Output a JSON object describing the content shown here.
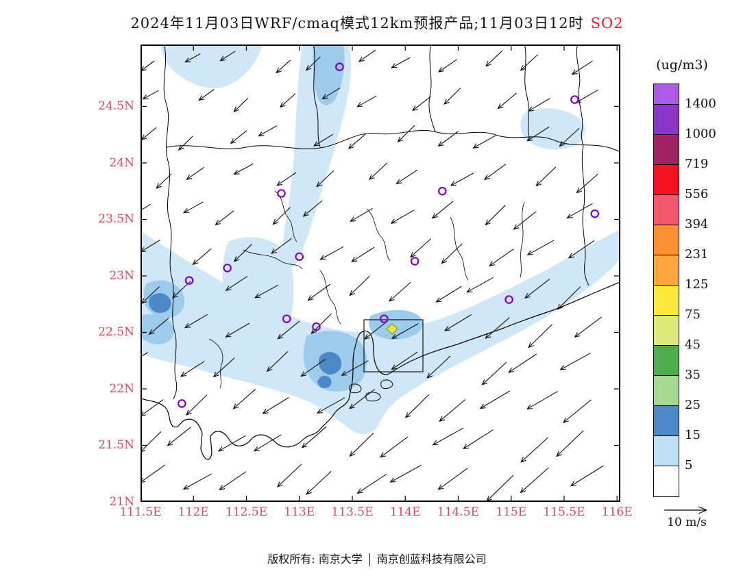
{
  "title": {
    "text": "2024年11月03日WRF/cmaq模式12km预报产品;11月03日12时",
    "species": "SO2"
  },
  "colorbar": {
    "unit": "(ug/m3)",
    "labels": [
      "1400",
      "1000",
      "719",
      "556",
      "394",
      "231",
      "125",
      "75",
      "45",
      "35",
      "25",
      "15",
      "5"
    ],
    "colors_top_to_bottom": [
      "#ab5be5",
      "#8936c9",
      "#a12364",
      "#f6111e",
      "#f4586e",
      "#fd8f33",
      "#ffa73e",
      "#ffe83e",
      "#dcea7a",
      "#4fae4c",
      "#a5d993",
      "#4d89c8",
      "#bfe0f5",
      "#ffffff"
    ]
  },
  "palette": {
    "pale": "#cfe7f7",
    "mid": "#9ccbec",
    "dark": "#4d89c8",
    "yellow": "#ffe23a",
    "yellowEdge": "#7ab648",
    "boundary": "#000000",
    "marker": "#7d00d4",
    "tick_label": "#e0475a"
  },
  "axes": {
    "extent": {
      "lon": [
        111.5,
        116.031
      ],
      "lat": [
        21.0,
        25.048
      ]
    },
    "lat_ticks": [
      {
        "v": 24.5,
        "label": "24.5N"
      },
      {
        "v": 24.0,
        "label": "24N"
      },
      {
        "v": 23.5,
        "label": "23.5N"
      },
      {
        "v": 23.0,
        "label": "23N"
      },
      {
        "v": 22.5,
        "label": "22.5N"
      },
      {
        "v": 22.0,
        "label": "22N"
      },
      {
        "v": 21.5,
        "label": "21.5N"
      },
      {
        "v": 21.0,
        "label": "21N"
      }
    ],
    "lon_ticks": [
      {
        "v": 111.5,
        "label": "111.5E"
      },
      {
        "v": 112.0,
        "label": "112E"
      },
      {
        "v": 112.5,
        "label": "112.5E"
      },
      {
        "v": 113.0,
        "label": "113E"
      },
      {
        "v": 113.5,
        "label": "113.5E"
      },
      {
        "v": 114.0,
        "label": "114E"
      },
      {
        "v": 114.5,
        "label": "114.5E"
      },
      {
        "v": 115.0,
        "label": "115E"
      },
      {
        "v": 115.5,
        "label": "115.5E"
      },
      {
        "v": 116.0,
        "label": "116E"
      }
    ]
  },
  "wind": {
    "ref_label": "10 m/s"
  },
  "footer": {
    "left": "版权所有: 南京大学",
    "right": "南京创蓝科技有限公司"
  },
  "stations": [
    {
      "lon": 113.38,
      "lat": 24.85
    },
    {
      "lon": 115.6,
      "lat": 24.56
    },
    {
      "lon": 112.83,
      "lat": 23.73
    },
    {
      "lon": 114.35,
      "lat": 23.75
    },
    {
      "lon": 115.79,
      "lat": 23.55
    },
    {
      "lon": 113.0,
      "lat": 23.17
    },
    {
      "lon": 112.32,
      "lat": 23.07
    },
    {
      "lon": 111.96,
      "lat": 22.96
    },
    {
      "lon": 114.09,
      "lat": 23.13
    },
    {
      "lon": 112.88,
      "lat": 22.62
    },
    {
      "lon": 113.16,
      "lat": 22.55
    },
    {
      "lon": 113.8,
      "lat": 22.62
    },
    {
      "lon": 114.98,
      "lat": 22.79
    },
    {
      "lon": 111.89,
      "lat": 21.87
    }
  ],
  "chart_data": {
    "type": "heatmap",
    "title": "2024年11月03日WRF/cmaq模式12km预报产品;11月03日12时 SO2",
    "variable": "SO2",
    "units": "ug/m3",
    "valid_time": "11月03日12时",
    "model": "WRF/cmaq 12km",
    "extent": {
      "lon_range": [
        111.5,
        116.0
      ],
      "lat_range": [
        21.0,
        25.0
      ]
    },
    "contour_levels": [
      5,
      15,
      25,
      35,
      45,
      75,
      125,
      231,
      394,
      556,
      719,
      1000,
      1400
    ],
    "level_colors_bottom_to_top": [
      "#ffffff",
      "#bfe0f5",
      "#4d89c8",
      "#a5d993",
      "#4fae4c",
      "#dcea7a",
      "#ffe83e",
      "#ffa73e",
      "#fd8f33",
      "#f4586e",
      "#f6111e",
      "#a12364",
      "#8936c9",
      "#ab5be5"
    ],
    "wind_field": "northeasterly flow, arrows point toward the southwest, longer over the sea (lower right)",
    "wind_reference": "10 m/s",
    "main_features": [
      "pale blue SO2 band (5-15 ug/m3) from the southwest coast northeastward along ~22.5-23N",
      "vertical pale blue plume near 113E from the north edge down to ~23.3N",
      "medium blue cores (15-25 ug/m3) near 111.6E/22.7N and over the Pearl River Delta",
      "dark blue spots (25+ ug/m3) near Guangzhou/Foshan around 113.3E/22.2N",
      "single small yellow maximum near 114.05E/22.47N",
      "purple ring markers at 14 city locations",
      "black rectangular study box around the Pearl River estuary 113.6-114.2E / 22.15-22.6N"
    ],
    "legend_position": "right vertical colorbar"
  }
}
